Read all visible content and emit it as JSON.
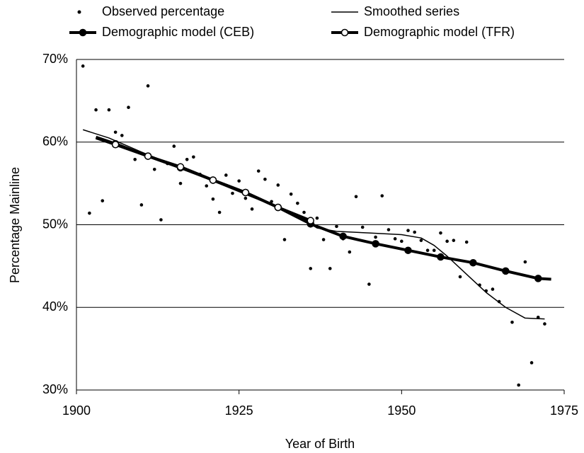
{
  "chart_data": {
    "type": "line",
    "x_label": "Year of Birth",
    "y_label": "Percentage Mainline",
    "xlim": [
      1900,
      1975
    ],
    "xticks": [
      1900,
      1925,
      1950,
      1975
    ],
    "ylim": [
      30,
      70
    ],
    "yticks": [
      {
        "value": 30,
        "label": "30%"
      },
      {
        "value": 40,
        "label": "40%"
      },
      {
        "value": 50,
        "label": "50%"
      },
      {
        "value": 60,
        "label": "60%"
      },
      {
        "value": 70,
        "label": "70%"
      }
    ],
    "grid": true,
    "series": [
      {
        "name": "Observed percentage",
        "style": "points",
        "color": "#000000",
        "x": [
          1901,
          1902,
          1903,
          1904,
          1905,
          1906,
          1907,
          1908,
          1909,
          1910,
          1911,
          1912,
          1913,
          1914,
          1915,
          1916,
          1917,
          1918,
          1919,
          1920,
          1921,
          1922,
          1923,
          1924,
          1925,
          1926,
          1927,
          1928,
          1929,
          1930,
          1931,
          1932,
          1933,
          1934,
          1935,
          1936,
          1937,
          1938,
          1939,
          1940,
          1941,
          1942,
          1943,
          1944,
          1945,
          1946,
          1947,
          1948,
          1949,
          1950,
          1951,
          1952,
          1953,
          1954,
          1955,
          1956,
          1957,
          1958,
          1959,
          1960,
          1961,
          1962,
          1963,
          1964,
          1965,
          1966,
          1967,
          1968,
          1969,
          1970,
          1971,
          1972
        ],
        "values": [
          69.2,
          51.4,
          63.9,
          52.9,
          63.9,
          61.2,
          60.8,
          64.2,
          57.9,
          52.4,
          66.8,
          56.7,
          50.6,
          57.4,
          59.5,
          55.0,
          57.9,
          58.2,
          56.1,
          54.7,
          53.1,
          51.5,
          56.0,
          53.8,
          55.3,
          53.2,
          51.9,
          56.5,
          55.5,
          52.8,
          54.8,
          48.2,
          53.7,
          52.6,
          51.5,
          44.7,
          50.8,
          48.2,
          44.7,
          49.8,
          48.3,
          46.7,
          53.4,
          49.7,
          42.8,
          48.5,
          53.5,
          49.4,
          48.3,
          48.0,
          49.3,
          49.1,
          48.1,
          46.9,
          46.9,
          49.0,
          48.0,
          48.1,
          43.7,
          47.9,
          45.3,
          42.7,
          42.0,
          42.2,
          40.7,
          44.3,
          38.2,
          30.6,
          45.5,
          33.3,
          38.8,
          38.0
        ]
      },
      {
        "name": "Smoothed series",
        "style": "thin",
        "color": "#000000",
        "x": [
          1901,
          1905,
          1910,
          1915,
          1920,
          1925,
          1930,
          1935,
          1937,
          1940,
          1945,
          1950,
          1953,
          1955,
          1957,
          1960,
          1963,
          1966,
          1969,
          1972
        ],
        "values": [
          61.5,
          60.5,
          58.8,
          57.2,
          55.6,
          54.0,
          52.4,
          50.6,
          49.6,
          49.2,
          49.0,
          48.8,
          48.4,
          47.5,
          46.2,
          44.0,
          41.8,
          40.0,
          38.7,
          38.6
        ]
      },
      {
        "name": "Demographic model (CEB)",
        "style": "filled",
        "color": "#000000",
        "x": [
          1903,
          1906,
          1911,
          1916,
          1921,
          1926,
          1931,
          1936,
          1941,
          1946,
          1951,
          1956,
          1961,
          1966,
          1971,
          1973
        ],
        "values": [
          60.6,
          59.8,
          58.3,
          56.9,
          55.4,
          53.9,
          52.1,
          50.1,
          48.6,
          47.7,
          46.9,
          46.1,
          45.4,
          44.4,
          43.5,
          43.4
        ]
      },
      {
        "name": "Demographic model (TFR)",
        "style": "open",
        "color": "#000000",
        "x": [
          1903,
          1906,
          1911,
          1916,
          1921,
          1926,
          1931,
          1936
        ],
        "values": [
          60.5,
          59.7,
          58.3,
          57.0,
          55.4,
          53.9,
          52.1,
          50.5
        ]
      }
    ]
  }
}
